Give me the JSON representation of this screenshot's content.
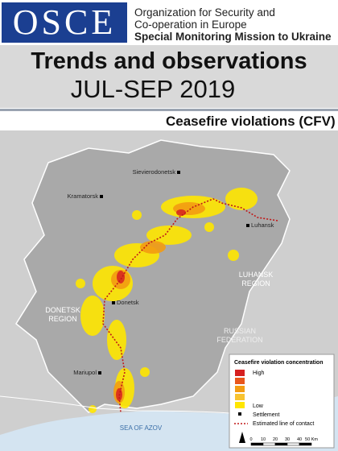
{
  "header": {
    "logo": "OSCE",
    "organization": [
      "Organization for Security and",
      "Co-operation in Europe"
    ],
    "mission": "Special Monitoring Mission to Ukraine",
    "title": "Trends and observations",
    "period": "JUL-SEP 2019"
  },
  "map": {
    "title": "Ceasefire violations (CFV)",
    "settlements": [
      "Sievierodonetsk",
      "Kramatorsk",
      "Luhansk",
      "Donetsk",
      "Mariupol"
    ],
    "regions": [
      [
        "LUHANSK",
        "REGION"
      ],
      [
        "DONETSK",
        "REGION"
      ],
      [
        "RUSSIAN",
        "FEDERATION"
      ]
    ],
    "sea": "SEA OF AZOV"
  },
  "legend": {
    "title": "Ceasefire violation concentration",
    "high": "High",
    "low": "Low",
    "settlement": "Settlement",
    "line": "Estimated line of contact",
    "scale": [
      "0",
      "10",
      "20",
      "30",
      "40",
      "50 Km"
    ]
  }
}
